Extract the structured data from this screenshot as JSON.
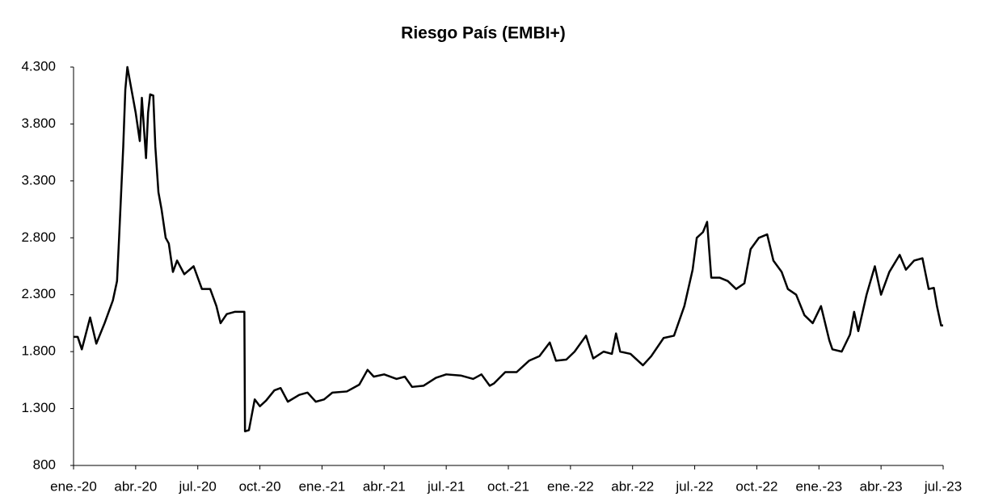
{
  "chart_data": {
    "type": "line",
    "title": "Riesgo País (EMBI+)",
    "color": "#000000",
    "xlim": [
      0,
      42
    ],
    "xticks": [
      {
        "value": 0,
        "label": "ene.-20"
      },
      {
        "value": 3,
        "label": "abr.-20"
      },
      {
        "value": 6,
        "label": "jul.-20"
      },
      {
        "value": 9,
        "label": "oct.-20"
      },
      {
        "value": 12,
        "label": "ene.-21"
      },
      {
        "value": 15,
        "label": "abr.-21"
      },
      {
        "value": 18,
        "label": "jul.-21"
      },
      {
        "value": 21,
        "label": "oct.-21"
      },
      {
        "value": 24,
        "label": "ene.-22"
      },
      {
        "value": 27,
        "label": "abr.-22"
      },
      {
        "value": 30,
        "label": "jul.-22"
      },
      {
        "value": 33,
        "label": "oct.-22"
      },
      {
        "value": 36,
        "label": "ene.-23"
      },
      {
        "value": 39,
        "label": "abr.-23"
      },
      {
        "value": 42,
        "label": "jul.-23"
      }
    ],
    "ylim": [
      800,
      4300
    ],
    "yticks": [
      800,
      {
        "value": 1300,
        "label": "1.300"
      },
      {
        "value": 1800,
        "label": "1.800"
      },
      {
        "value": 2300,
        "label": "2.300"
      },
      {
        "value": 2800,
        "label": "2.800"
      },
      {
        "value": 3300,
        "label": "3.300"
      },
      {
        "value": 3800,
        "label": "3.800"
      },
      {
        "value": 4300,
        "label": "4.300"
      }
    ],
    "x": [
      0,
      0.2,
      0.4,
      0.8,
      1.1,
      1.5,
      1.9,
      2.1,
      2.2,
      2.3,
      2.4,
      2.5,
      2.6,
      2.8,
      3.0,
      3.2,
      3.3,
      3.5,
      3.6,
      3.7,
      3.85,
      3.95,
      4.1,
      4.25,
      4.45,
      4.6,
      4.8,
      5.0,
      5.35,
      5.8,
      6.2,
      6.6,
      6.9,
      7.1,
      7.4,
      7.8,
      8.25,
      8.28,
      8.47,
      8.75,
      9.0,
      9.3,
      9.7,
      10.0,
      10.35,
      10.9,
      11.3,
      11.7,
      12.1,
      12.5,
      13.2,
      13.8,
      14.2,
      14.5,
      15.0,
      15.6,
      16.0,
      16.35,
      16.9,
      17.5,
      18.0,
      18.7,
      19.3,
      19.7,
      20.1,
      20.3,
      20.85,
      21.4,
      22.0,
      22.5,
      23.0,
      23.3,
      23.8,
      24.2,
      24.75,
      25.1,
      25.6,
      26.0,
      26.2,
      26.4,
      26.9,
      27.5,
      27.9,
      28.5,
      29.0,
      29.5,
      29.9,
      30.1,
      30.4,
      30.6,
      30.8,
      31.2,
      31.6,
      32.0,
      32.4,
      32.7,
      33.1,
      33.5,
      33.8,
      34.2,
      34.5,
      34.9,
      35.3,
      35.7,
      36.1,
      36.5,
      36.65,
      37.1,
      37.5,
      37.7,
      37.9,
      38.3,
      38.7,
      39.0,
      39.4,
      39.9,
      40.2,
      40.6,
      41.0,
      41.3,
      41.55,
      41.7,
      41.9,
      42.0
    ],
    "values": [
      1930,
      1930,
      1820,
      2100,
      1870,
      2050,
      2250,
      2420,
      2800,
      3200,
      3600,
      4100,
      4300,
      4100,
      3900,
      3650,
      4030,
      3500,
      3900,
      4060,
      4050,
      3600,
      3200,
      3050,
      2800,
      2750,
      2500,
      2600,
      2480,
      2550,
      2350,
      2350,
      2200,
      2050,
      2130,
      2150,
      2150,
      1100,
      1110,
      1380,
      1320,
      1370,
      1460,
      1480,
      1360,
      1420,
      1440,
      1360,
      1380,
      1440,
      1450,
      1510,
      1640,
      1580,
      1600,
      1560,
      1580,
      1490,
      1500,
      1570,
      1600,
      1590,
      1560,
      1600,
      1500,
      1520,
      1620,
      1620,
      1720,
      1760,
      1880,
      1720,
      1730,
      1800,
      1940,
      1740,
      1800,
      1780,
      1960,
      1800,
      1780,
      1680,
      1760,
      1920,
      1940,
      2200,
      2520,
      2800,
      2850,
      2940,
      2450,
      2450,
      2420,
      2350,
      2400,
      2700,
      2800,
      2830,
      2600,
      2500,
      2350,
      2300,
      2120,
      2050,
      2200,
      1900,
      1820,
      1800,
      1950,
      2150,
      1980,
      2300,
      2550,
      2300,
      2500,
      2650,
      2520,
      2600,
      2620,
      2350,
      2360,
      2200,
      2030,
      2030
    ]
  }
}
